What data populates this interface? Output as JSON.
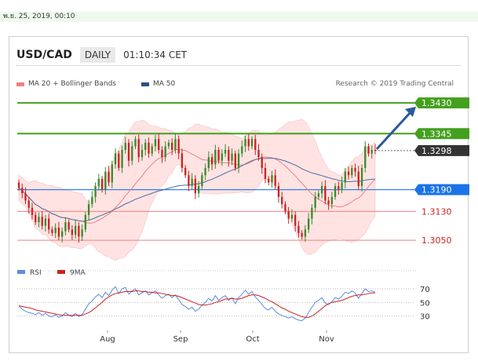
{
  "header": {
    "date": "พ.ย. 25, 2019, 00:10",
    "symbol": "USD/CAD",
    "timeframe": "DAILY",
    "clock": "01:10:34 CET",
    "credit": "Research © 2019 Trading Central"
  },
  "legend": {
    "ma20": "MA 20 + Bollinger Bands",
    "ma50": "MA 50",
    "rsi": "RSI",
    "ma9": "9MA"
  },
  "colors": {
    "bull": "#3a8a2a",
    "bear": "#cc2222",
    "ma20": "#f08080",
    "ma50": "#4a6ea0",
    "band": "#ffe3e3",
    "resistance": "#44a01e",
    "current": "#333333",
    "pivot": "#1a73e8",
    "support": "#f08080",
    "rsi": "#5b8de0",
    "rsi_ma": "#cc2222",
    "arrow": "#2a5a9a"
  },
  "chart_data": [
    {
      "type": "candlestick",
      "x_labels": [
        "Aug",
        "Sep",
        "Oct",
        "Nov"
      ],
      "ylim": [
        1.302,
        1.3465
      ],
      "levels": [
        {
          "value": 1.343,
          "label": "1.3430",
          "kind": "resistance"
        },
        {
          "value": 1.3345,
          "label": "1.3345",
          "kind": "resistance"
        },
        {
          "value": 1.3298,
          "label": "1.3298",
          "kind": "current"
        },
        {
          "value": 1.319,
          "label": "1.3190",
          "kind": "pivot"
        },
        {
          "value": 1.313,
          "label": "1.3130",
          "kind": "support"
        },
        {
          "value": 1.305,
          "label": "1.3050",
          "kind": "support"
        }
      ],
      "close": [
        1.3195,
        1.318,
        1.316,
        1.314,
        1.312,
        1.31,
        1.3115,
        1.309,
        1.311,
        1.308,
        1.307,
        1.3085,
        1.306,
        1.3075,
        1.31,
        1.308,
        1.3065,
        1.309,
        1.306,
        1.308,
        1.312,
        1.315,
        1.317,
        1.32,
        1.322,
        1.319,
        1.324,
        1.321,
        1.326,
        1.329,
        1.325,
        1.33,
        1.332,
        1.327,
        1.331,
        1.333,
        1.328,
        1.33,
        1.332,
        1.329,
        1.331,
        1.333,
        1.33,
        1.328,
        1.331,
        1.332,
        1.33,
        1.333,
        1.329,
        1.325,
        1.323,
        1.32,
        1.322,
        1.318,
        1.32,
        1.323,
        1.325,
        1.328,
        1.326,
        1.33,
        1.327,
        1.329,
        1.33,
        1.327,
        1.329,
        1.325,
        1.329,
        1.331,
        1.333,
        1.331,
        1.333,
        1.33,
        1.328,
        1.325,
        1.322,
        1.321,
        1.323,
        1.32,
        1.317,
        1.315,
        1.313,
        1.311,
        1.312,
        1.309,
        1.307,
        1.306,
        1.308,
        1.311,
        1.314,
        1.317,
        1.318,
        1.32,
        1.316,
        1.315,
        1.317,
        1.32,
        1.319,
        1.321,
        1.324,
        1.323,
        1.325,
        1.324,
        1.32,
        1.325,
        1.331,
        1.329,
        1.33,
        1.3298
      ]
    },
    {
      "type": "line",
      "name": "RSI",
      "yticks": [
        70,
        50,
        30
      ],
      "ylim": [
        10,
        85
      ],
      "rsi": [
        45,
        40,
        37,
        35,
        34,
        32,
        35,
        31,
        34,
        30,
        29,
        32,
        28,
        30,
        35,
        31,
        29,
        34,
        29,
        32,
        40,
        48,
        52,
        58,
        62,
        57,
        65,
        60,
        68,
        73,
        63,
        70,
        72,
        62,
        67,
        70,
        61,
        64,
        67,
        61,
        64,
        67,
        61,
        56,
        60,
        62,
        57,
        61,
        54,
        47,
        44,
        40,
        43,
        37,
        40,
        46,
        50,
        56,
        52,
        60,
        53,
        57,
        60,
        53,
        57,
        48,
        57,
        62,
        68,
        62,
        66,
        58,
        53,
        47,
        41,
        39,
        43,
        37,
        33,
        31,
        29,
        27,
        29,
        26,
        24,
        23,
        27,
        35,
        43,
        50,
        53,
        57,
        49,
        47,
        51,
        57,
        55,
        59,
        65,
        63,
        67,
        64,
        56,
        63,
        70,
        66,
        67,
        65
      ],
      "rsi_ma": [
        45,
        44,
        43,
        42,
        41,
        39,
        38,
        37,
        36,
        35,
        34,
        33,
        32,
        31,
        31,
        31,
        31,
        31,
        31,
        31,
        33,
        35,
        38,
        42,
        46,
        50,
        55,
        58,
        61,
        63,
        64,
        65,
        66,
        66,
        66,
        67,
        67,
        66,
        66,
        65,
        65,
        64,
        64,
        63,
        62,
        61,
        60,
        60,
        59,
        57,
        55,
        53,
        51,
        49,
        47,
        46,
        46,
        47,
        48,
        50,
        51,
        53,
        55,
        55,
        56,
        55,
        55,
        56,
        58,
        60,
        61,
        61,
        60,
        58,
        56,
        53,
        51,
        48,
        45,
        42,
        40,
        37,
        35,
        33,
        31,
        29,
        28,
        28,
        30,
        33,
        37,
        41,
        45,
        48,
        50,
        51,
        52,
        53,
        55,
        57,
        59,
        60,
        61,
        61,
        62,
        63,
        64,
        64
      ]
    }
  ]
}
